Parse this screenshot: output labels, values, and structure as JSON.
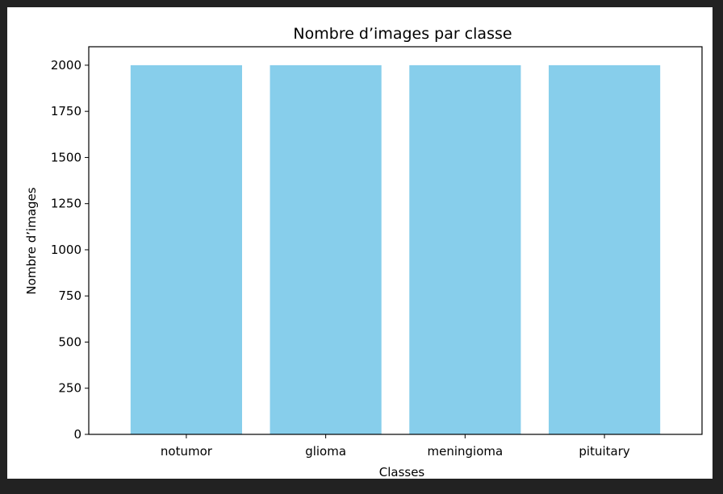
{
  "chart_data": {
    "type": "bar",
    "title": "Nombre d’images par classe",
    "xlabel": "Classes",
    "ylabel": "Nombre d’images",
    "categories": [
      "notumor",
      "glioma",
      "meningioma",
      "pituitary"
    ],
    "values": [
      2000,
      2000,
      2000,
      2000
    ],
    "ylim": [
      0,
      2100
    ],
    "yticks": [
      0,
      250,
      500,
      750,
      1000,
      1250,
      1500,
      1750,
      2000
    ],
    "grid": false,
    "bar_color": "#87CEEB"
  }
}
